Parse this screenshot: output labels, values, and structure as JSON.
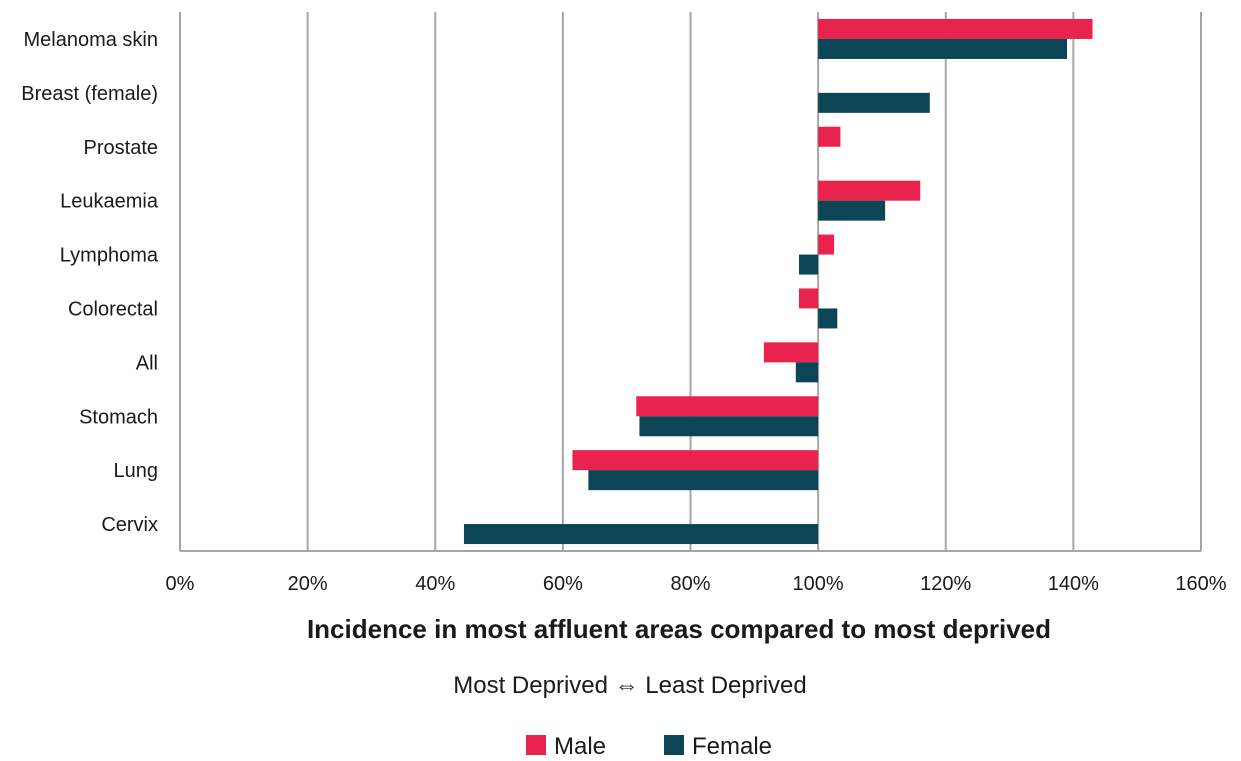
{
  "chart_data": {
    "type": "bar",
    "orientation": "horizontal",
    "baseline": 100,
    "categories": [
      "Melanoma skin",
      "Breast (female)",
      "Prostate",
      "Leukaemia",
      "Lymphoma",
      "Colorectal",
      "All",
      "Stomach",
      "Lung",
      "Cervix"
    ],
    "series": [
      {
        "name": "Male",
        "color": "#e8234e",
        "values": [
          143,
          null,
          103.5,
          116,
          102.5,
          97,
          91.5,
          71.5,
          61.5,
          null
        ]
      },
      {
        "name": "Female",
        "color": "#0c4656",
        "values": [
          139,
          117.5,
          null,
          110.5,
          97,
          103,
          96.5,
          72,
          64,
          44.5
        ]
      }
    ],
    "xlim": [
      0,
      160
    ],
    "xticks": [
      "0%",
      "20%",
      "40%",
      "60%",
      "80%",
      "100%",
      "120%",
      "140%",
      "160%"
    ],
    "xtick_values": [
      0,
      20,
      40,
      60,
      80,
      100,
      120,
      140,
      160
    ],
    "xlabel": "Incidence in most affluent areas compared to most deprived",
    "subtitle": "Most Deprived ⇔ Least Deprived",
    "legend_position": "bottom",
    "grid": true
  }
}
